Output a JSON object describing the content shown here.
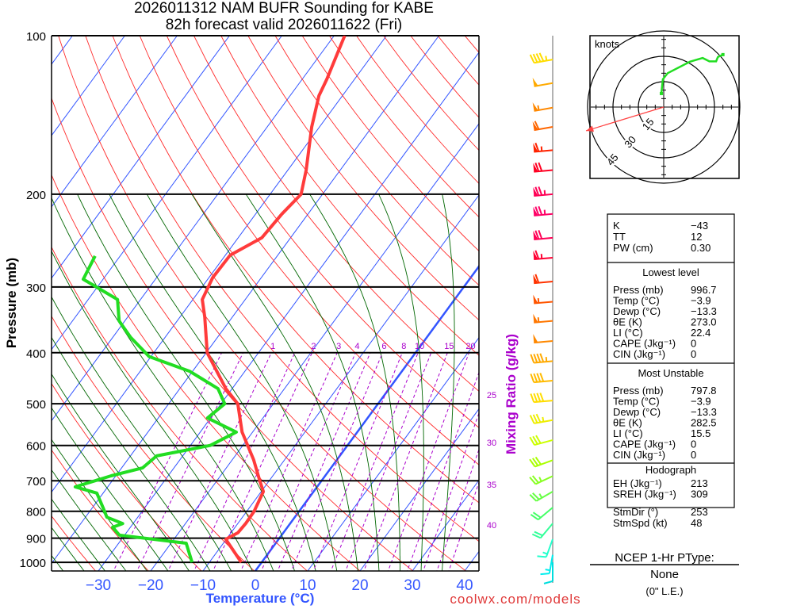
{
  "header": {
    "title_line1": "2026011312 NAM BUFR Sounding for KABE",
    "title_line2": "82h forecast valid 2026011622 (Fri)"
  },
  "footer": {
    "credit": "coolwx.com/models"
  },
  "colors": {
    "temperature": "#ff3b3b",
    "dewpoint": "#22dd22",
    "isotherm": "#3355ff",
    "dry_adiabat": "#ff2a2a",
    "moist_adiabat": "#006600",
    "mixing_ratio": "#aa00cc",
    "storm_motion": "#ff4444"
  },
  "chart_data": {
    "type": "line",
    "title": "Skew-T log-P sounding",
    "xlabel": "Temperature (°C)",
    "ylabel": "Pressure (mb)",
    "mixing_ratio_label": "Mixing Ratio (g/kg)",
    "pressure_ticks": [
      "100",
      "200",
      "300",
      "400",
      "500",
      "600",
      "700",
      "800",
      "900",
      "1000"
    ],
    "pressure_values": [
      100,
      200,
      300,
      400,
      500,
      600,
      700,
      800,
      900,
      1000
    ],
    "temp_ticks": [
      "−30",
      "−20",
      "−10",
      "0",
      "10",
      "20",
      "30",
      "40"
    ],
    "temp_values": [
      -30,
      -20,
      -10,
      0,
      10,
      20,
      30,
      40
    ],
    "ylim": [
      1050,
      100
    ],
    "xlim_at_surface": [
      -39,
      42
    ],
    "mixing_ratio_top_labels": [
      "1",
      "2",
      "3",
      "4",
      "6",
      "8",
      "10",
      "15",
      "20"
    ],
    "mixing_ratio_top_values": [
      1,
      2,
      3,
      4,
      6,
      8,
      10,
      15,
      20
    ],
    "mixing_ratio_side_labels": [
      "25",
      "30",
      "35",
      "40"
    ],
    "mixing_ratio_side_values": [
      25,
      30,
      35,
      40
    ],
    "series": [
      {
        "name": "Temperature",
        "points": [
          [
            1000,
            -3.9
          ],
          [
            904,
            -10.1
          ],
          [
            879,
            -8.7
          ],
          [
            844,
            -8.5
          ],
          [
            800,
            -8.6
          ],
          [
            734,
            -9.6
          ],
          [
            700,
            -11.8
          ],
          [
            639,
            -15.9
          ],
          [
            566,
            -22.0
          ],
          [
            500,
            -26.8
          ],
          [
            468,
            -31.2
          ],
          [
            400,
            -39.8
          ],
          [
            342,
            -45.3
          ],
          [
            317,
            -48.2
          ],
          [
            288,
            -49.3
          ],
          [
            261,
            -49.1
          ],
          [
            242,
            -45.5
          ],
          [
            218,
            -45.0
          ],
          [
            200,
            -44.1
          ],
          [
            180,
            -46.5
          ],
          [
            149,
            -51.5
          ],
          [
            130,
            -54.5
          ],
          [
            121,
            -55.3
          ],
          [
            100,
            -58.0
          ]
        ]
      },
      {
        "name": "Dewpoint",
        "points": [
          [
            1000,
            -13.3
          ],
          [
            920,
            -17.1
          ],
          [
            888,
            -31.0
          ],
          [
            858,
            -33.4
          ],
          [
            844,
            -32.0
          ],
          [
            821,
            -35.9
          ],
          [
            787,
            -38.0
          ],
          [
            739,
            -41.2
          ],
          [
            719,
            -46.2
          ],
          [
            685,
            -40.9
          ],
          [
            662,
            -36.0
          ],
          [
            628,
            -35.0
          ],
          [
            600,
            -26.2
          ],
          [
            566,
            -23.1
          ],
          [
            532,
            -30.6
          ],
          [
            500,
            -29.3
          ],
          [
            468,
            -32.7
          ],
          [
            434,
            -40.5
          ],
          [
            407,
            -50.3
          ],
          [
            374,
            -56.6
          ],
          [
            348,
            -61.1
          ],
          [
            317,
            -64.4
          ],
          [
            290,
            -73.8
          ],
          [
            262,
            -74.8
          ]
        ]
      }
    ],
    "wind_barbs": [
      {
        "p": 111,
        "dir": 260,
        "spd": 45,
        "color": "#ffdd00"
      },
      {
        "p": 123,
        "dir": 260,
        "spd": 50,
        "color": "#ffaa00"
      },
      {
        "p": 137,
        "dir": 260,
        "spd": 55,
        "color": "#ff8800"
      },
      {
        "p": 149,
        "dir": 260,
        "spd": 60,
        "color": "#ff6600"
      },
      {
        "p": 165,
        "dir": 265,
        "spd": 65,
        "color": "#ff2200"
      },
      {
        "p": 180,
        "dir": 265,
        "spd": 70,
        "color": "#ff0022"
      },
      {
        "p": 200,
        "dir": 265,
        "spd": 75,
        "color": "#ff0055"
      },
      {
        "p": 218,
        "dir": 265,
        "spd": 75,
        "color": "#ff0066"
      },
      {
        "p": 242,
        "dir": 265,
        "spd": 70,
        "color": "#ff0055"
      },
      {
        "p": 264,
        "dir": 265,
        "spd": 65,
        "color": "#ff0033"
      },
      {
        "p": 293,
        "dir": 265,
        "spd": 60,
        "color": "#ff3300"
      },
      {
        "p": 320,
        "dir": 265,
        "spd": 55,
        "color": "#ff5500"
      },
      {
        "p": 348,
        "dir": 265,
        "spd": 55,
        "color": "#ff7700"
      },
      {
        "p": 380,
        "dir": 265,
        "spd": 50,
        "color": "#ff8800"
      },
      {
        "p": 415,
        "dir": 265,
        "spd": 45,
        "color": "#ffaa00"
      },
      {
        "p": 452,
        "dir": 265,
        "spd": 40,
        "color": "#ffbb00"
      },
      {
        "p": 493,
        "dir": 265,
        "spd": 40,
        "color": "#ffdd00"
      },
      {
        "p": 537,
        "dir": 260,
        "spd": 35,
        "color": "#eeee00"
      },
      {
        "p": 586,
        "dir": 255,
        "spd": 30,
        "color": "#ccff00"
      },
      {
        "p": 640,
        "dir": 250,
        "spd": 30,
        "color": "#aaff00"
      },
      {
        "p": 686,
        "dir": 245,
        "spd": 25,
        "color": "#88ff22"
      },
      {
        "p": 734,
        "dir": 240,
        "spd": 25,
        "color": "#66ff44"
      },
      {
        "p": 787,
        "dir": 230,
        "spd": 20,
        "color": "#44ff66"
      },
      {
        "p": 844,
        "dir": 220,
        "spd": 20,
        "color": "#33ff99"
      },
      {
        "p": 904,
        "dir": 200,
        "spd": 15,
        "color": "#22ffcc"
      },
      {
        "p": 968,
        "dir": 190,
        "spd": 15,
        "color": "#00eeee"
      },
      {
        "p": 1000,
        "dir": 180,
        "spd": 10,
        "color": "#00dddd"
      }
    ],
    "hodograph": {
      "units_label": "knots",
      "ring_labels": [
        "15",
        "30",
        "45"
      ],
      "ring_values": [
        15,
        30,
        45
      ],
      "uv_points": [
        [
          -1.4,
          8
        ],
        [
          -0.5,
          16.4
        ],
        [
          2.3,
          20
        ],
        [
          15.5,
          26.8
        ],
        [
          23,
          29
        ],
        [
          27,
          27
        ],
        [
          31,
          27
        ],
        [
          32,
          29.6
        ],
        [
          35,
          31
        ]
      ],
      "storm_motion": {
        "dir": 253,
        "spd": 48
      }
    }
  },
  "indices": {
    "rows": [
      {
        "label": "K",
        "value": "−43"
      },
      {
        "label": "TT",
        "value": "12"
      },
      {
        "label": "PW (cm)",
        "value": "0.30"
      }
    ],
    "lowest_title": "Lowest level",
    "lowest": [
      {
        "label": "Press (mb)",
        "value": "996.7"
      },
      {
        "label": "Temp (°C)",
        "value": "−3.9"
      },
      {
        "label": "Dewp (°C)",
        "value": "−13.3"
      },
      {
        "label": "θE (K)",
        "value": "273.0"
      },
      {
        "label": "LI (°C)",
        "value": "22.4"
      },
      {
        "label": "CAPE (Jkg⁻¹)",
        "value": "0"
      },
      {
        "label": "CIN (Jkg⁻¹)",
        "value": "0"
      }
    ],
    "unstable_title": "Most Unstable",
    "unstable": [
      {
        "label": "Press (mb)",
        "value": "797.8"
      },
      {
        "label": "Temp (°C)",
        "value": "−3.9"
      },
      {
        "label": "Dewp (°C)",
        "value": "−13.3"
      },
      {
        "label": "θE (K)",
        "value": "282.5"
      },
      {
        "label": "LI (°C)",
        "value": "15.5"
      },
      {
        "label": "CAPE (Jkg⁻¹)",
        "value": "0"
      },
      {
        "label": "CIN (Jkg⁻¹)",
        "value": "0"
      }
    ],
    "hodo_title": "Hodograph",
    "hodo": [
      {
        "label": "EH (Jkg⁻¹)",
        "value": "213"
      },
      {
        "label": "SREH (Jkg⁻¹)",
        "value": "309"
      },
      {
        "label": "StmDir (°)",
        "value": "253"
      },
      {
        "label": "StmSpd (kt)",
        "value": "48"
      }
    ]
  },
  "ptype": {
    "title": "NCEP 1-Hr PType:",
    "value": "None",
    "note": "(0\" L.E.)"
  }
}
